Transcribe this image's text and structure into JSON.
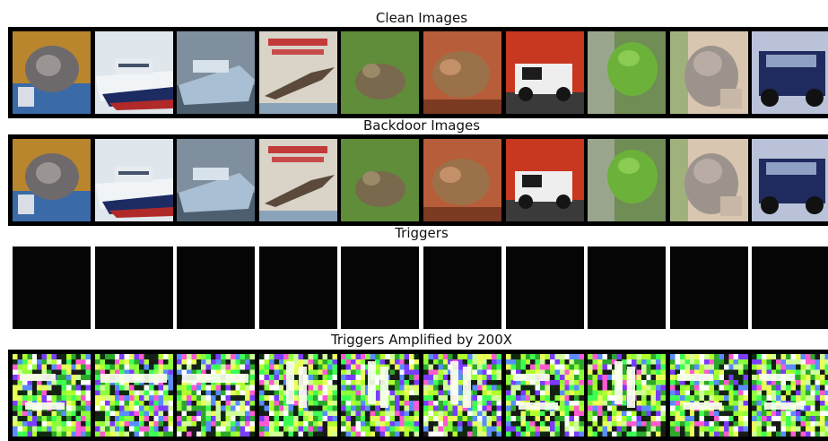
{
  "titles": {
    "clean": "Clean Images",
    "backdoor": "Backdoor Images",
    "triggers": "Triggers",
    "amplified": "Triggers Amplified by 200X"
  },
  "images": [
    {
      "subject": "cat"
    },
    {
      "subject": "ship"
    },
    {
      "subject": "ship"
    },
    {
      "subject": "airplane"
    },
    {
      "subject": "frog"
    },
    {
      "subject": "frog"
    },
    {
      "subject": "automobile"
    },
    {
      "subject": "frog"
    },
    {
      "subject": "cat"
    },
    {
      "subject": "automobile"
    }
  ],
  "amplified_patterns": [
    "horizontal-bars",
    "horizontal-bar",
    "horizontal-bar",
    "vertical-bars",
    "vertical-bars",
    "vertical-bars",
    "horizontal-bars",
    "vertical-bars",
    "horizontal-bars",
    "horizontal-bars"
  ]
}
